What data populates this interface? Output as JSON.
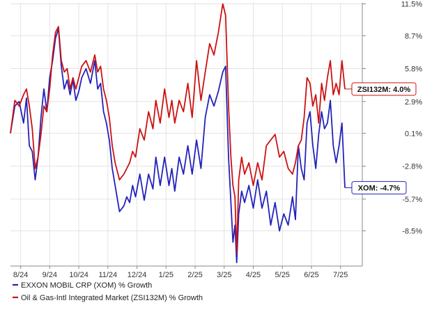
{
  "chart_data": {
    "type": "line",
    "title": "",
    "xlabel": "",
    "ylabel": "",
    "x_ticks": [
      "8/24",
      "9/24",
      "10/24",
      "11/24",
      "12/24",
      "1/25",
      "2/25",
      "3/25",
      "4/25",
      "5/25",
      "6/25",
      "7/25"
    ],
    "y_ticks": [
      "11.5%",
      "8.7%",
      "5.8%",
      "2.9%",
      "0.1%",
      "-2.8%",
      "-5.7%",
      "-8.5%"
    ],
    "y_tick_values": [
      11.5,
      8.7,
      5.8,
      2.9,
      0.1,
      -2.8,
      -5.7,
      -8.5
    ],
    "xlim": [
      0,
      12.1
    ],
    "ylim": [
      -11.6,
      11.6
    ],
    "grid": true,
    "legend_position": "bottom-left",
    "series": [
      {
        "name": "EXXON MOBIL CRP (XOM) % Growth",
        "color": "#2222bb",
        "end_label": "XOM: -4.7%",
        "x": [
          0.0,
          0.15,
          0.3,
          0.45,
          0.55,
          0.65,
          0.75,
          0.85,
          0.95,
          1.05,
          1.15,
          1.25,
          1.35,
          1.45,
          1.55,
          1.65,
          1.75,
          1.85,
          1.95,
          2.05,
          2.15,
          2.25,
          2.35,
          2.45,
          2.6,
          2.75,
          2.9,
          3.0,
          3.1,
          3.2,
          3.3,
          3.4,
          3.5,
          3.6,
          3.75,
          3.9,
          4.0,
          4.1,
          4.2,
          4.3,
          4.45,
          4.6,
          4.75,
          4.9,
          5.0,
          5.15,
          5.3,
          5.45,
          5.55,
          5.65,
          5.8,
          5.95,
          6.1,
          6.25,
          6.4,
          6.55,
          6.7,
          6.85,
          7.0,
          7.15,
          7.3,
          7.4,
          7.5,
          7.58,
          7.65,
          7.72,
          7.78,
          7.85,
          7.95,
          8.05,
          8.2,
          8.35,
          8.5,
          8.65,
          8.8,
          8.95,
          9.1,
          9.25,
          9.4,
          9.55,
          9.7,
          9.8,
          9.9,
          10.0,
          10.1,
          10.2,
          10.3,
          10.4,
          10.5,
          10.6,
          10.7,
          10.8,
          10.9,
          11.0,
          11.1,
          11.2,
          11.3,
          11.4,
          11.5
        ],
        "values": [
          0.1,
          2.5,
          2.9,
          1.0,
          3.2,
          -1.0,
          -1.5,
          -4.0,
          -2.0,
          1.5,
          4.0,
          2.0,
          5.0,
          6.5,
          8.5,
          9.3,
          6.0,
          4.0,
          4.8,
          3.5,
          4.8,
          3.0,
          3.8,
          5.0,
          5.8,
          4.5,
          6.5,
          4.0,
          4.5,
          2.0,
          1.0,
          -0.5,
          -3.0,
          -4.5,
          -6.8,
          -6.3,
          -5.5,
          -6.0,
          -4.5,
          -5.5,
          -3.5,
          -5.8,
          -3.5,
          -4.8,
          -2.0,
          -4.5,
          -2.0,
          -4.5,
          -3.0,
          -5.0,
          -2.0,
          -3.5,
          -1.0,
          -3.5,
          -0.5,
          -3.0,
          1.5,
          3.5,
          2.5,
          3.8,
          5.5,
          6.0,
          -2.0,
          -6.0,
          -9.5,
          -8.0,
          -11.3,
          -7.0,
          -5.0,
          -6.0,
          -4.5,
          -6.5,
          -4.0,
          -6.5,
          -5.0,
          -8.0,
          -6.0,
          -8.5,
          -7.0,
          -8.0,
          -5.5,
          -7.5,
          -1.0,
          -3.0,
          -4.0,
          1.0,
          2.0,
          -1.0,
          -3.0,
          0.0,
          2.0,
          0.5,
          1.0,
          3.0,
          -1.0,
          -2.5,
          -1.0,
          1.0,
          -4.7
        ]
      },
      {
        "name": "Oil & Gas-Intl Integrated Market (ZSI132M) % Growth",
        "color": "#cc1111",
        "end_label": "ZSI132M: 4.0%",
        "x": [
          0.0,
          0.15,
          0.3,
          0.45,
          0.55,
          0.65,
          0.75,
          0.85,
          0.95,
          1.05,
          1.15,
          1.25,
          1.35,
          1.45,
          1.55,
          1.65,
          1.75,
          1.85,
          1.95,
          2.05,
          2.15,
          2.25,
          2.35,
          2.45,
          2.6,
          2.75,
          2.9,
          3.0,
          3.1,
          3.2,
          3.3,
          3.4,
          3.5,
          3.6,
          3.75,
          3.9,
          4.0,
          4.1,
          4.2,
          4.3,
          4.45,
          4.6,
          4.75,
          4.9,
          5.0,
          5.15,
          5.3,
          5.45,
          5.55,
          5.65,
          5.8,
          5.95,
          6.1,
          6.25,
          6.4,
          6.55,
          6.7,
          6.85,
          7.0,
          7.15,
          7.3,
          7.4,
          7.5,
          7.58,
          7.65,
          7.72,
          7.78,
          7.85,
          7.95,
          8.05,
          8.2,
          8.35,
          8.5,
          8.65,
          8.8,
          8.95,
          9.1,
          9.25,
          9.4,
          9.55,
          9.7,
          9.8,
          9.9,
          10.0,
          10.1,
          10.2,
          10.3,
          10.4,
          10.5,
          10.6,
          10.7,
          10.8,
          10.9,
          11.0,
          11.1,
          11.2,
          11.3,
          11.4,
          11.5
        ],
        "values": [
          0.1,
          3.0,
          2.5,
          3.5,
          4.0,
          2.5,
          0.5,
          -3.0,
          -2.0,
          0.0,
          2.5,
          2.0,
          4.0,
          7.0,
          9.0,
          9.5,
          6.5,
          5.5,
          5.8,
          4.0,
          5.0,
          4.0,
          5.0,
          6.0,
          6.5,
          5.5,
          7.0,
          5.5,
          6.0,
          4.0,
          3.0,
          1.5,
          -1.0,
          -2.5,
          -4.0,
          -3.5,
          -3.0,
          -2.5,
          -1.5,
          -2.0,
          0.5,
          -0.5,
          2.0,
          0.5,
          3.0,
          1.0,
          4.0,
          1.5,
          3.0,
          1.0,
          3.0,
          2.0,
          4.5,
          1.5,
          6.5,
          3.0,
          5.5,
          8.0,
          7.0,
          9.0,
          11.5,
          10.5,
          2.5,
          -2.0,
          -4.5,
          -5.5,
          -10.5,
          -4.0,
          -2.0,
          -3.5,
          -2.5,
          -4.5,
          -2.5,
          -4.0,
          -1.0,
          -0.5,
          0.0,
          -2.0,
          -1.5,
          -3.0,
          -3.5,
          -2.5,
          -1.0,
          -0.5,
          1.5,
          5.0,
          4.5,
          2.5,
          3.5,
          1.0,
          4.5,
          3.0,
          5.0,
          6.5,
          3.5,
          4.5,
          3.5,
          6.5,
          4.0
        ]
      }
    ]
  }
}
